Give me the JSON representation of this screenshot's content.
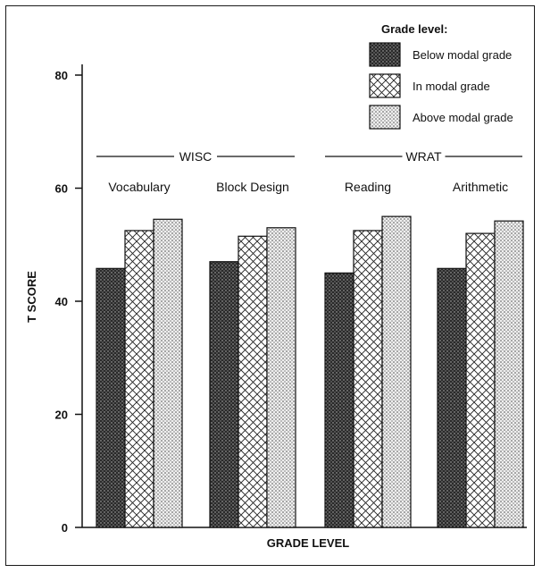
{
  "chart_data": {
    "type": "bar",
    "ylabel": "T SCORE",
    "xlabel": "GRADE LEVEL",
    "ylim": [
      0,
      80
    ],
    "yticks": [
      0,
      20,
      40,
      60,
      80
    ],
    "groups": [
      {
        "label": "WISC",
        "categories": [
          "Vocabulary",
          "Block Design"
        ]
      },
      {
        "label": "WRAT",
        "categories": [
          "Reading",
          "Arithmetic"
        ]
      }
    ],
    "categories": [
      "Vocabulary",
      "Block Design",
      "Reading",
      "Arithmetic"
    ],
    "series": [
      {
        "name": "Below modal grade",
        "values": [
          45.8,
          47.0,
          45.0,
          45.8
        ],
        "pattern": "dark-dots"
      },
      {
        "name": "In modal grade",
        "values": [
          52.5,
          51.5,
          52.5,
          52.0
        ],
        "pattern": "crosshatch"
      },
      {
        "name": "Above modal grade",
        "values": [
          54.5,
          53.0,
          55.0,
          54.2
        ],
        "pattern": "light-dots"
      }
    ],
    "legend": {
      "title": "Grade level:",
      "position": "top-right"
    }
  }
}
